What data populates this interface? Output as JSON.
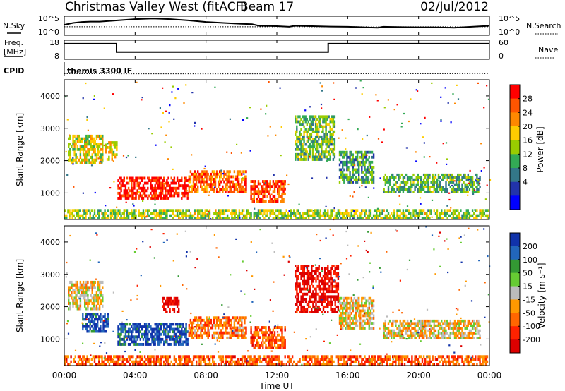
{
  "header": {
    "title": "Christmas Valley West (fitACF)",
    "beam": "Beam 17",
    "date": "02/Jul/2012",
    "cpid_label": "CPID",
    "cpid_value": "themis 3300 IF"
  },
  "x_axis": {
    "label": "Time UT",
    "ticks": [
      "00:00",
      "04:00",
      "08:00",
      "12:00",
      "16:00",
      "20:00",
      "00:00"
    ],
    "range_hours": [
      0,
      24
    ]
  },
  "chart_data": [
    {
      "type": "line",
      "name": "nsky_nsearch",
      "left_label": "N.Sky",
      "right_label": "N.Search",
      "left_ticks": [
        "10^5",
        "10^0"
      ],
      "right_ticks": [
        "10^5",
        "10^0"
      ],
      "series": [
        {
          "name": "N.Sky",
          "style": "solid",
          "x": [
            0.0,
            0.5,
            1.0,
            1.5,
            2.0,
            3.0,
            4.0,
            5.0,
            6.0,
            7.0,
            8.0,
            9.0,
            10.0,
            10.6,
            11.0,
            12.0,
            12.7,
            13.0,
            14.0,
            15.0,
            16.0,
            17.0,
            17.7,
            18.0,
            19.0,
            20.0,
            21.0,
            22.0,
            23.0,
            24.0
          ],
          "y": [
            0.55,
            0.65,
            0.7,
            0.72,
            0.72,
            0.78,
            0.85,
            0.88,
            0.85,
            0.78,
            0.7,
            0.65,
            0.6,
            0.58,
            0.5,
            0.48,
            0.45,
            0.5,
            0.48,
            0.46,
            0.45,
            0.42,
            0.4,
            0.45,
            0.43,
            0.42,
            0.42,
            0.4,
            0.45,
            0.5
          ]
        },
        {
          "name": "N.Search",
          "style": "dotted",
          "x": [
            0,
            24
          ],
          "y": [
            0.45,
            0.45
          ]
        }
      ]
    },
    {
      "type": "line",
      "name": "freq_nave",
      "left_label": "Freq. [MHz]",
      "right_label": "Nave",
      "left_ticks": [
        "18",
        "8"
      ],
      "right_ticks": [
        "60",
        "0"
      ],
      "series": [
        {
          "name": "Freq.",
          "style": "solid",
          "x": [
            0.0,
            2.95,
            2.95,
            14.9,
            14.9,
            24.0
          ],
          "y": [
            16.2,
            16.2,
            11.8,
            11.8,
            16.2,
            16.2
          ]
        },
        {
          "name": "Nave",
          "style": "dotted",
          "x": [
            0.0,
            3.0,
            3.0,
            15.0,
            15.0,
            24.0
          ],
          "y": [
            0.45,
            0.45,
            0.38,
            0.38,
            0.45,
            0.45
          ]
        }
      ]
    },
    {
      "type": "heatmap",
      "name": "power",
      "ylabel": "Slant Range [km]",
      "yticks": [
        1000,
        2000,
        3000,
        4000
      ],
      "ylim": [
        180,
        4500
      ],
      "colorbar_label": "Power [dB]",
      "colorbar_ticks": [
        "28",
        "24",
        "20",
        "16",
        "12",
        "8",
        "4"
      ],
      "colorbar_colors": [
        "#ff0000",
        "#ff5500",
        "#ff8800",
        "#ffcc00",
        "#99cc00",
        "#33aa55",
        "#337788",
        "#2233aa",
        "#0000ff"
      ],
      "regions": [
        {
          "t": [
            0.2,
            2.2
          ],
          "r": [
            1900,
            2800
          ],
          "level": 0.55
        },
        {
          "t": [
            2.3,
            3.0
          ],
          "r": [
            2000,
            2600
          ],
          "level": 0.6
        },
        {
          "t": [
            3.0,
            7.0
          ],
          "r": [
            800,
            1500
          ],
          "level": 0.95
        },
        {
          "t": [
            7.0,
            10.3
          ],
          "r": [
            1000,
            1700
          ],
          "level": 0.8
        },
        {
          "t": [
            10.5,
            12.5
          ],
          "r": [
            700,
            1400
          ],
          "level": 0.85
        },
        {
          "t": [
            13.0,
            15.3
          ],
          "r": [
            2000,
            3400
          ],
          "level": 0.45
        },
        {
          "t": [
            15.5,
            17.5
          ],
          "r": [
            1300,
            2300
          ],
          "level": 0.35
        },
        {
          "t": [
            18.0,
            23.5
          ],
          "r": [
            1000,
            1600
          ],
          "level": 0.4
        },
        {
          "t": [
            0.0,
            24.0
          ],
          "r": [
            180,
            500
          ],
          "level": 0.5
        }
      ]
    },
    {
      "type": "heatmap",
      "name": "velocity",
      "ylabel": "Slant Range [km]",
      "yticks": [
        1000,
        2000,
        3000,
        4000
      ],
      "ylim": [
        180,
        4500
      ],
      "colorbar_label": "Velocity [m s⁻¹]",
      "colorbar_ticks": [
        "200",
        "100",
        "50",
        "15",
        "-15",
        "-50",
        "-100",
        "-200"
      ],
      "colorbar_colors": [
        "#1133aa",
        "#2266bb",
        "#339933",
        "#66cc33",
        "#bbbbbb",
        "#ff9900",
        "#ff6600",
        "#ff2200",
        "#dd0000"
      ],
      "regions": [
        {
          "t": [
            0.2,
            2.2
          ],
          "r": [
            1900,
            2800
          ],
          "level": 0.45
        },
        {
          "t": [
            1.0,
            2.5
          ],
          "r": [
            1200,
            1800
          ],
          "level": 0.9
        },
        {
          "t": [
            3.0,
            7.0
          ],
          "r": [
            800,
            1500
          ],
          "level": 0.9
        },
        {
          "t": [
            5.5,
            6.5
          ],
          "r": [
            1800,
            2300
          ],
          "level": 0.05
        },
        {
          "t": [
            7.0,
            10.3
          ],
          "r": [
            1000,
            1700
          ],
          "level": 0.3
        },
        {
          "t": [
            10.5,
            12.5
          ],
          "r": [
            700,
            1400
          ],
          "level": 0.25
        },
        {
          "t": [
            13.0,
            15.5
          ],
          "r": [
            1800,
            3300
          ],
          "level": 0.05
        },
        {
          "t": [
            15.5,
            17.5
          ],
          "r": [
            1300,
            2300
          ],
          "level": 0.45
        },
        {
          "t": [
            18.0,
            23.5
          ],
          "r": [
            1000,
            1600
          ],
          "level": 0.45
        },
        {
          "t": [
            0.0,
            24.0
          ],
          "r": [
            180,
            500
          ],
          "level": 0.25
        }
      ]
    }
  ]
}
